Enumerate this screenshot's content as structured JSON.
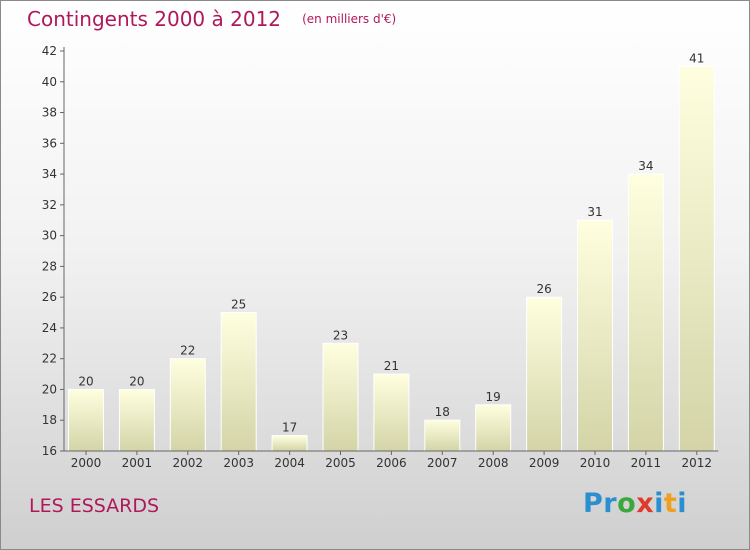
{
  "header": {
    "title": "Contingents 2000 à 2012",
    "subtitle": "(en milliers d'€)"
  },
  "footer": {
    "commune": "LES ESSARDS",
    "logo_letters": [
      "P",
      "r",
      "o",
      "x",
      "i",
      "t",
      "i"
    ],
    "logo_colors": [
      "#2a8fd0",
      "#2a8fd0",
      "#3aa83a",
      "#e03a2a",
      "#2a8fd0",
      "#f0a020",
      "#2a8fd0"
    ]
  },
  "colors": {
    "title": "#b0185c",
    "bar_top": "#ffffe0",
    "bar_bottom": "#d4d4a8",
    "axis": "#666666"
  },
  "chart_data": {
    "type": "bar",
    "title": "Contingents 2000 à 2012",
    "subtitle": "(en milliers d'€)",
    "categories": [
      "2000",
      "2001",
      "2002",
      "2003",
      "2004",
      "2005",
      "2006",
      "2007",
      "2008",
      "2009",
      "2010",
      "2011",
      "2012"
    ],
    "values": [
      20,
      20,
      22,
      25,
      17,
      23,
      21,
      18,
      19,
      26,
      31,
      34,
      41
    ],
    "ylim": [
      16,
      42
    ],
    "yticks": [
      16,
      18,
      20,
      22,
      24,
      26,
      28,
      30,
      32,
      34,
      36,
      38,
      40,
      42
    ],
    "grid": false,
    "data_labels": true
  }
}
